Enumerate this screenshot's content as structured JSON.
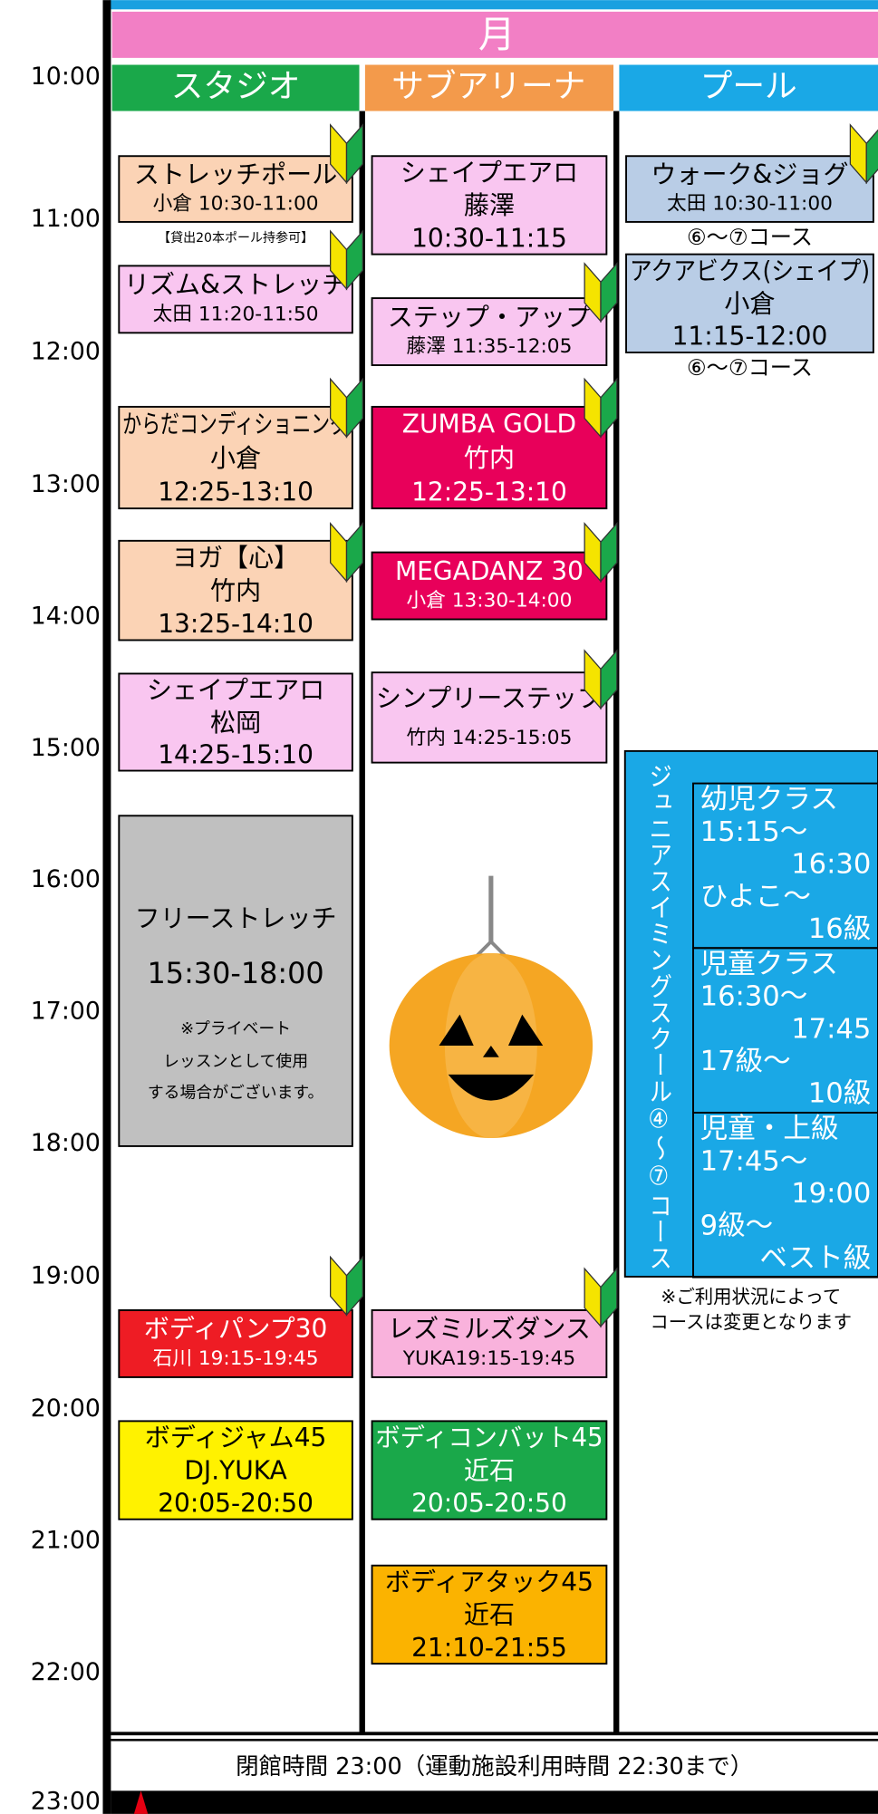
{
  "header": {
    "day": "月"
  },
  "columns": [
    "スタジオ",
    "サブアリーナ",
    "プール"
  ],
  "times": [
    "10:00",
    "11:00",
    "12:00",
    "13:00",
    "14:00",
    "15:00",
    "16:00",
    "17:00",
    "18:00",
    "19:00",
    "20:00",
    "21:00",
    "22:00",
    "23:00"
  ],
  "studio": [
    {
      "lines": [
        "ストレッチポール",
        "小倉 10:30-11:00"
      ],
      "note": "【貸出20本ポール持参可】"
    },
    {
      "lines": [
        "リズム&ストレッチ",
        "太田 11:20-11:50"
      ]
    },
    {
      "lines": [
        "からだコンディショニング",
        "小倉",
        "12:25-13:10"
      ]
    },
    {
      "lines": [
        "ヨガ【心】",
        "竹内",
        "13:25-14:10"
      ]
    },
    {
      "lines": [
        "シェイプエアロ",
        "松岡",
        "14:25-15:10"
      ]
    },
    {
      "lines": [
        "フリーストレッチ",
        "15:30-18:00",
        "※プライベート",
        "レッスンとして使用",
        "する場合がございます。"
      ]
    },
    {
      "lines": [
        "ボディパンプ30",
        "石川 19:15-19:45"
      ]
    },
    {
      "lines": [
        "ボディジャム45",
        "DJ.YUKA",
        "20:05-20:50"
      ]
    }
  ],
  "subarena": [
    {
      "lines": [
        "シェイプエアロ",
        "藤澤",
        "10:30-11:15"
      ]
    },
    {
      "lines": [
        "ステップ・アップ",
        "藤澤 11:35-12:05"
      ]
    },
    {
      "lines": [
        "ZUMBA GOLD",
        "竹内",
        "12:25-13:10"
      ]
    },
    {
      "lines": [
        "MEGADANZ 30",
        "小倉 13:30-14:00"
      ]
    },
    {
      "lines": [
        "シンプリーステップ",
        "竹内 14:25-15:05"
      ]
    },
    {
      "lines": [
        "レズミルズダンス",
        "YUKA19:15-19:45"
      ]
    },
    {
      "lines": [
        "ボディコンバット45",
        "近石",
        "20:05-20:50"
      ]
    },
    {
      "lines": [
        "ボディアタック45",
        "近石",
        "21:10-21:55"
      ]
    }
  ],
  "pool": [
    {
      "lines": [
        "ウォーク&ジョグ",
        "太田 10:30-11:00"
      ],
      "note": "⑥〜⑦コース"
    },
    {
      "lines": [
        "アクアビクス(シェイプ)",
        "小倉",
        "11:15-12:00"
      ],
      "note": "⑥〜⑦コース"
    }
  ],
  "junior": {
    "title": "ジュニアスイミングスクール④〜⑦コース",
    "classes": [
      {
        "lines": [
          "幼児クラス",
          "15:15〜",
          "16:30",
          "ひよこ〜",
          "16級"
        ]
      },
      {
        "lines": [
          "児童クラス",
          "16:30〜",
          "17:45",
          "17級〜",
          "10級"
        ]
      },
      {
        "lines": [
          "児童・上級",
          "17:45〜",
          "19:00",
          "9級〜",
          "ベスト級"
        ]
      }
    ],
    "note": [
      "※ご利用状況によって",
      "コースは変更となります"
    ]
  },
  "footer": "閉館時間 23:00（運動施設利用時間 22:30まで）"
}
